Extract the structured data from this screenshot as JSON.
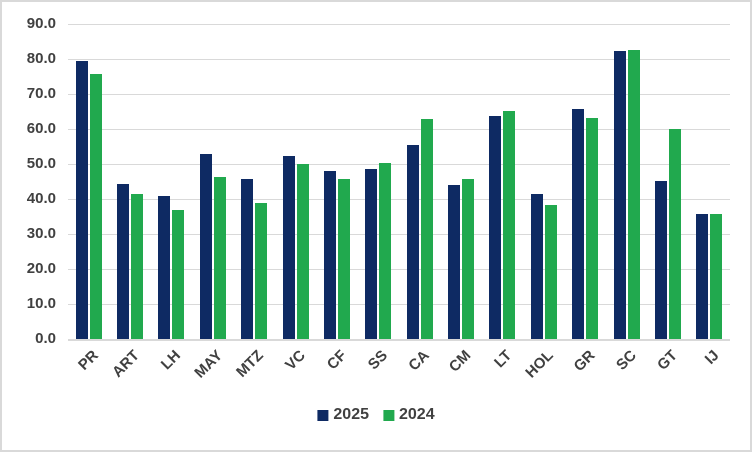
{
  "chart_data": {
    "type": "bar",
    "title": "",
    "xlabel": "",
    "ylabel": "",
    "categories": [
      "PR",
      "ART",
      "LH",
      "MAY",
      "MTZ",
      "VC",
      "CF",
      "SS",
      "CA",
      "CM",
      "LT",
      "HOL",
      "GR",
      "SC",
      "GT",
      "IJ"
    ],
    "series": [
      {
        "name": "2025",
        "color": "#0e2a63",
        "values": [
          79.3,
          44.4,
          40.8,
          53.0,
          45.8,
          52.3,
          48.0,
          48.6,
          55.5,
          43.9,
          63.6,
          41.3,
          65.7,
          82.4,
          45.2,
          35.7
        ]
      },
      {
        "name": "2024",
        "color": "#21a94e",
        "values": [
          75.6,
          41.5,
          37.0,
          46.4,
          38.8,
          49.9,
          45.6,
          50.3,
          62.8,
          45.8,
          65.1,
          38.4,
          63.1,
          82.5,
          59.9,
          35.6
        ]
      }
    ],
    "ylim": [
      0,
      90
    ],
    "ytick_step": 10,
    "ytick_decimals": 1,
    "ytick_labels": [
      "0.0",
      "10.0",
      "20.0",
      "30.0",
      "40.0",
      "50.0",
      "60.0",
      "70.0",
      "80.0",
      "90.0"
    ],
    "grid": true,
    "legend_position": "bottom"
  },
  "colors": {
    "gridline": "#d9d9d9",
    "axis_line": "#d9d9d9",
    "frame_border": "#d9d9d9",
    "label_text": "#404040",
    "background": "#ffffff"
  }
}
